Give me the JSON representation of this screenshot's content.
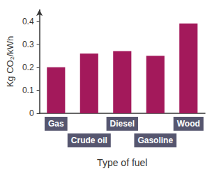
{
  "chart_data": {
    "type": "bar",
    "categories": [
      "Gas",
      "Crude oil",
      "Diesel",
      "Gasoline",
      "Wood"
    ],
    "values": [
      0.2,
      0.26,
      0.27,
      0.25,
      0.39
    ],
    "color": "#a3195b",
    "ylabel": "Kg CO₂/kWh",
    "xlabel": "Type of fuel",
    "ylim": [
      0,
      0.45
    ],
    "yticks": [
      0,
      0.1,
      0.2,
      0.3,
      0.4
    ],
    "grid": false
  }
}
